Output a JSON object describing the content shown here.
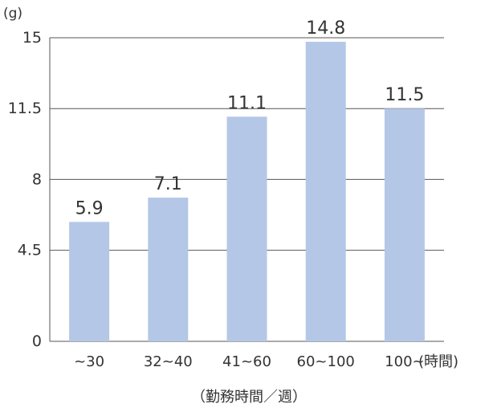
{
  "chart_data": {
    "type": "bar",
    "y_unit": "(g)",
    "categories": [
      "~30",
      "32~40",
      "41~60",
      "60~100",
      "100~"
    ],
    "values": [
      5.9,
      7.1,
      11.1,
      14.8,
      11.5
    ],
    "x_unit": "(時間)",
    "xlabel": "（勤務時間／週）",
    "ylim": [
      0,
      15
    ],
    "yticks": [
      "0",
      "4.5",
      "8",
      "11.5",
      "15"
    ],
    "grid": true,
    "bar_color": "#b4c7e7"
  }
}
